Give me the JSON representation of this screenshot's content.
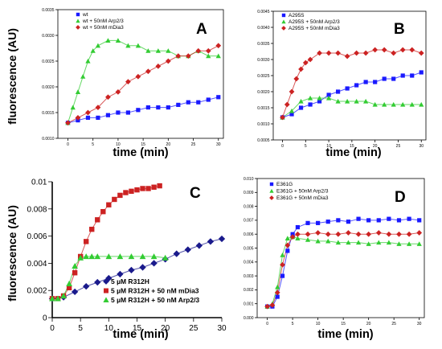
{
  "chart_data": [
    {
      "panel": "A",
      "type": "scatter",
      "xlabel": "time (min)",
      "ylabel": "fluorescence (AU)",
      "xlim": [
        -2,
        31
      ],
      "ylim": [
        0.001,
        0.0035
      ],
      "xticks": [
        0,
        5,
        10,
        15,
        20,
        25,
        30
      ],
      "yticks": [
        0.001,
        0.0015,
        0.002,
        0.0025,
        0.003,
        0.0035
      ],
      "ytick_labels": [
        "0.0010",
        "0.0015",
        "0.0020",
        "0.0025",
        "0.0030",
        "0.0035"
      ],
      "legend_position": "top-left",
      "series": [
        {
          "name": "wt",
          "color": "#1a1aff",
          "marker": "square",
          "x": [
            0,
            2,
            4,
            6,
            8,
            10,
            12,
            14,
            16,
            18,
            20,
            22,
            24,
            26,
            28,
            30
          ],
          "y": [
            0.0013,
            0.00135,
            0.0014,
            0.0014,
            0.00145,
            0.0015,
            0.0015,
            0.00155,
            0.0016,
            0.0016,
            0.0016,
            0.00165,
            0.0017,
            0.0017,
            0.00175,
            0.0018
          ]
        },
        {
          "name": "wt + 50nM Arp2/3",
          "color": "#33cc33",
          "marker": "triangle",
          "x": [
            0,
            1,
            2,
            3,
            4,
            5,
            6,
            8,
            10,
            12,
            14,
            16,
            18,
            20,
            22,
            24,
            26,
            28,
            30
          ],
          "y": [
            0.0013,
            0.0016,
            0.0019,
            0.0022,
            0.0025,
            0.0027,
            0.0028,
            0.0029,
            0.0029,
            0.0028,
            0.0028,
            0.0027,
            0.0027,
            0.0027,
            0.0026,
            0.0026,
            0.0027,
            0.0026,
            0.0026
          ]
        },
        {
          "name": "wt + 50nM mDia3",
          "color": "#cc2222",
          "marker": "diamond",
          "x": [
            0,
            2,
            4,
            6,
            8,
            10,
            12,
            14,
            16,
            18,
            20,
            22,
            24,
            26,
            28,
            30
          ],
          "y": [
            0.0013,
            0.0014,
            0.0015,
            0.0016,
            0.0018,
            0.0019,
            0.0021,
            0.0022,
            0.0023,
            0.0024,
            0.0025,
            0.0026,
            0.0026,
            0.0027,
            0.0027,
            0.0028
          ]
        }
      ]
    },
    {
      "panel": "B",
      "type": "scatter",
      "xlabel": "time (min)",
      "xlim": [
        -2,
        31
      ],
      "ylim": [
        0.0005,
        0.0045
      ],
      "xticks": [
        0,
        5,
        10,
        15,
        20,
        25,
        30
      ],
      "yticks": [
        0.0005,
        0.001,
        0.0015,
        0.002,
        0.0025,
        0.003,
        0.0035,
        0.004,
        0.0045
      ],
      "ytick_labels": [
        "0.0005",
        "0.0010",
        "0.0015",
        "0.0020",
        "0.0025",
        "0.0030",
        "0.0035",
        "0.0040",
        "0.0045"
      ],
      "legend_position": "top-left",
      "series": [
        {
          "name": "A295S",
          "color": "#1a1aff",
          "marker": "square",
          "x": [
            0,
            2,
            4,
            6,
            8,
            10,
            12,
            14,
            16,
            18,
            20,
            22,
            24,
            26,
            28,
            30
          ],
          "y": [
            0.0012,
            0.0013,
            0.0015,
            0.0016,
            0.0017,
            0.0019,
            0.002,
            0.0021,
            0.0022,
            0.0023,
            0.0023,
            0.0024,
            0.0024,
            0.0025,
            0.0025,
            0.0026
          ]
        },
        {
          "name": "A295S + 50nM Arp2/3",
          "color": "#33cc33",
          "marker": "triangle",
          "x": [
            0,
            2,
            4,
            6,
            8,
            10,
            12,
            14,
            16,
            18,
            20,
            22,
            24,
            26,
            28,
            30
          ],
          "y": [
            0.0012,
            0.0014,
            0.0017,
            0.0018,
            0.0018,
            0.0018,
            0.0017,
            0.0017,
            0.0017,
            0.0017,
            0.0016,
            0.0016,
            0.0016,
            0.0016,
            0.0016,
            0.0016
          ]
        },
        {
          "name": "A295S + 50nM mDia3",
          "color": "#cc2222",
          "marker": "diamond",
          "x": [
            0,
            1,
            2,
            3,
            4,
            5,
            6,
            8,
            10,
            12,
            14,
            16,
            18,
            20,
            22,
            24,
            26,
            28,
            30
          ],
          "y": [
            0.0012,
            0.0016,
            0.002,
            0.0024,
            0.0027,
            0.0029,
            0.003,
            0.0032,
            0.0032,
            0.0032,
            0.0031,
            0.0032,
            0.0032,
            0.0033,
            0.0033,
            0.0032,
            0.0033,
            0.0033,
            0.0032
          ]
        }
      ]
    },
    {
      "panel": "C",
      "type": "scatter",
      "xlabel": "time (min)",
      "ylabel": "fluorescence (AU)",
      "xlim": [
        0,
        30
      ],
      "ylim": [
        0,
        0.01
      ],
      "xticks": [
        0,
        5,
        10,
        15,
        20,
        25,
        30
      ],
      "yticks": [
        0,
        0.002,
        0.004,
        0.006,
        0.008,
        0.01
      ],
      "ytick_labels": [
        "0",
        "0.002",
        "0.004",
        "0.006",
        "0.008",
        "0.01"
      ],
      "legend_position": "bottom-left",
      "series": [
        {
          "name": "5 µM R312H",
          "color": "#1a1a8c",
          "marker": "diamond",
          "x": [
            0,
            2,
            4,
            6,
            8,
            10,
            12,
            14,
            16,
            18,
            20,
            22,
            24,
            26,
            28,
            30
          ],
          "y": [
            0.0014,
            0.0015,
            0.0019,
            0.0023,
            0.0026,
            0.0029,
            0.0032,
            0.0035,
            0.0037,
            0.004,
            0.0043,
            0.0047,
            0.005,
            0.0053,
            0.0056,
            0.0058
          ]
        },
        {
          "name": "5 µM R312H + 50 nM mDia3",
          "color": "#cc2222",
          "marker": "square",
          "x": [
            0,
            1,
            2,
            3,
            4,
            5,
            6,
            7,
            8,
            9,
            10,
            11,
            12,
            13,
            14,
            15,
            16,
            17,
            18,
            19
          ],
          "y": [
            0.0014,
            0.0014,
            0.0016,
            0.0022,
            0.0033,
            0.0045,
            0.0056,
            0.0065,
            0.0072,
            0.0078,
            0.0083,
            0.0087,
            0.009,
            0.0092,
            0.0093,
            0.0094,
            0.0095,
            0.0095,
            0.0096,
            0.0097
          ]
        },
        {
          "name": "5 µM R312H + 50 nM Arp2/3",
          "color": "#33cc33",
          "marker": "triangle",
          "x": [
            0,
            1,
            2,
            3,
            4,
            5,
            6,
            7,
            8,
            10,
            12,
            14,
            16,
            18,
            20
          ],
          "y": [
            0.0014,
            0.0014,
            0.0016,
            0.0025,
            0.0038,
            0.0044,
            0.0045,
            0.0045,
            0.0045,
            0.0045,
            0.0045,
            0.0045,
            0.0045,
            0.0045,
            0.0044
          ]
        }
      ]
    },
    {
      "panel": "D",
      "type": "scatter",
      "xlabel": "time (min)",
      "xlim": [
        -2,
        31
      ],
      "ylim": [
        0,
        0.01
      ],
      "xticks": [
        0,
        5,
        10,
        15,
        20,
        25,
        30
      ],
      "yticks": [
        0,
        0.001,
        0.002,
        0.003,
        0.004,
        0.005,
        0.006,
        0.007,
        0.008,
        0.009,
        0.01
      ],
      "ytick_labels": [
        "0.000",
        "0.001",
        "0.002",
        "0.003",
        "0.004",
        "0.005",
        "0.006",
        "0.007",
        "0.008",
        "0.009",
        "0.010"
      ],
      "legend_position": "top-left",
      "series": [
        {
          "name": "E361G",
          "color": "#1a1aff",
          "marker": "square",
          "x": [
            0,
            1,
            2,
            3,
            4,
            5,
            6,
            8,
            10,
            12,
            14,
            16,
            18,
            20,
            22,
            24,
            26,
            28,
            30
          ],
          "y": [
            0.0008,
            0.0008,
            0.0015,
            0.003,
            0.0048,
            0.006,
            0.0065,
            0.0068,
            0.0068,
            0.0069,
            0.007,
            0.0069,
            0.0071,
            0.007,
            0.007,
            0.0071,
            0.007,
            0.0071,
            0.007
          ]
        },
        {
          "name": "E361G + 50nM Arp2/3",
          "color": "#33cc33",
          "marker": "triangle",
          "x": [
            0,
            1,
            2,
            3,
            4,
            5,
            6,
            8,
            10,
            12,
            14,
            16,
            18,
            20,
            22,
            24,
            26,
            28,
            30
          ],
          "y": [
            0.0008,
            0.001,
            0.0022,
            0.0045,
            0.0057,
            0.0058,
            0.0057,
            0.0056,
            0.0055,
            0.0055,
            0.0054,
            0.0054,
            0.0054,
            0.0053,
            0.0054,
            0.0054,
            0.0053,
            0.0053,
            0.0053
          ]
        },
        {
          "name": "E361G + 50nM mDia3",
          "color": "#cc2222",
          "marker": "diamond",
          "x": [
            0,
            1,
            2,
            3,
            4,
            5,
            6,
            8,
            10,
            12,
            14,
            16,
            18,
            20,
            22,
            24,
            26,
            28,
            30
          ],
          "y": [
            0.0008,
            0.0009,
            0.0018,
            0.0038,
            0.0052,
            0.0058,
            0.006,
            0.006,
            0.0061,
            0.006,
            0.006,
            0.0061,
            0.006,
            0.006,
            0.0061,
            0.006,
            0.006,
            0.006,
            0.0061
          ]
        }
      ]
    }
  ]
}
